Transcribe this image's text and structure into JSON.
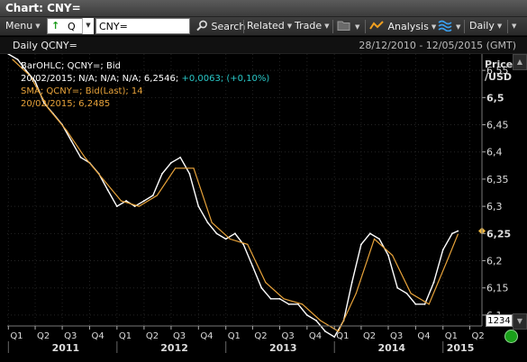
{
  "window": {
    "title": "Chart: CNY="
  },
  "toolbar": {
    "menu_label": "Menu",
    "ric_prefix": "Q",
    "ric_value": "CNY=",
    "search_label": "Search",
    "related_label": "Related",
    "trade_label": "Trade",
    "analysis_label": "Analysis",
    "interval_label": "Daily"
  },
  "header": {
    "chart_name": "Daily QCNY=",
    "date_range": "28/12/2010 - 12/05/2015 (GMT)"
  },
  "legend": {
    "bar_line": "BarOHLC; QCNY=; Bid",
    "bar_values": "20/02/2015; N/A; N/A; N/A; 6,2546;",
    "bar_change": "+0,0063; (+0,10%)",
    "sma_line": "SMA; QCNY=; Bid(Last); 14",
    "sma_values": "20/02/2015; 6,2485"
  },
  "y_axis": {
    "title_1": "Price",
    "title_2": "/USD",
    "ticks": [
      "6,55",
      "6,5",
      "6,45",
      "6,4",
      "6,35",
      "6,3",
      "6,25",
      "6,2",
      "6,15",
      "6,1"
    ],
    "current_price_label": "6,25",
    "bottom_box": "1234"
  },
  "x_axis": {
    "quarters": [
      "Q1",
      "Q2",
      "Q3",
      "Q4",
      "Q1",
      "Q2",
      "Q3",
      "Q4",
      "Q1",
      "Q2",
      "Q3",
      "Q4",
      "Q1",
      "Q2",
      "Q3",
      "Q4",
      "Q1",
      "Q2"
    ],
    "years": [
      "2011",
      "2012",
      "2013",
      "2014",
      "2015"
    ]
  },
  "colors": {
    "price_series": "#ffffff",
    "sma_series": "#e8a33a",
    "change_text": "#29c8c8",
    "current_marker": "#f0b840",
    "status_dot": "#1aa01a"
  },
  "chart_data": {
    "type": "line",
    "title": "Daily QCNY=",
    "ylabel": "Price /USD",
    "ylim": [
      6.08,
      6.58
    ],
    "x_range": [
      "2010-12-28",
      "2015-05-12"
    ],
    "grid": true,
    "legend_placement": "top-left",
    "series": [
      {
        "name": "BarOHLC; QCNY=; Bid",
        "color": "#ffffff",
        "points": [
          [
            "2011-01-01",
            6.58
          ],
          [
            "2011-02-01",
            6.57
          ],
          [
            "2011-03-01",
            6.55
          ],
          [
            "2011-04-01",
            6.53
          ],
          [
            "2011-05-01",
            6.49
          ],
          [
            "2011-06-01",
            6.47
          ],
          [
            "2011-07-01",
            6.45
          ],
          [
            "2011-08-01",
            6.42
          ],
          [
            "2011-09-01",
            6.39
          ],
          [
            "2011-10-01",
            6.38
          ],
          [
            "2011-11-01",
            6.36
          ],
          [
            "2011-12-01",
            6.33
          ],
          [
            "2012-01-01",
            6.3
          ],
          [
            "2012-02-01",
            6.31
          ],
          [
            "2012-03-01",
            6.3
          ],
          [
            "2012-04-01",
            6.31
          ],
          [
            "2012-05-01",
            6.32
          ],
          [
            "2012-06-01",
            6.36
          ],
          [
            "2012-07-01",
            6.38
          ],
          [
            "2012-08-01",
            6.39
          ],
          [
            "2012-09-01",
            6.36
          ],
          [
            "2012-10-01",
            6.3
          ],
          [
            "2012-11-01",
            6.27
          ],
          [
            "2012-12-01",
            6.25
          ],
          [
            "2013-01-01",
            6.24
          ],
          [
            "2013-02-01",
            6.25
          ],
          [
            "2013-03-01",
            6.23
          ],
          [
            "2013-04-01",
            6.19
          ],
          [
            "2013-05-01",
            6.15
          ],
          [
            "2013-06-01",
            6.13
          ],
          [
            "2013-07-01",
            6.13
          ],
          [
            "2013-08-01",
            6.12
          ],
          [
            "2013-09-01",
            6.12
          ],
          [
            "2013-10-01",
            6.1
          ],
          [
            "2013-11-01",
            6.09
          ],
          [
            "2013-12-01",
            6.07
          ],
          [
            "2014-01-01",
            6.06
          ],
          [
            "2014-02-01",
            6.09
          ],
          [
            "2014-03-01",
            6.16
          ],
          [
            "2014-04-01",
            6.23
          ],
          [
            "2014-05-01",
            6.25
          ],
          [
            "2014-06-01",
            6.24
          ],
          [
            "2014-07-01",
            6.21
          ],
          [
            "2014-08-01",
            6.15
          ],
          [
            "2014-09-01",
            6.14
          ],
          [
            "2014-10-01",
            6.12
          ],
          [
            "2014-11-01",
            6.12
          ],
          [
            "2014-12-01",
            6.16
          ],
          [
            "2015-01-01",
            6.22
          ],
          [
            "2015-02-01",
            6.25
          ],
          [
            "2015-02-20",
            6.2546
          ]
        ]
      },
      {
        "name": "SMA; QCNY=; Bid(Last); 14",
        "color": "#e8a33a",
        "points": [
          [
            "2011-01-15",
            6.57
          ],
          [
            "2011-03-15",
            6.54
          ],
          [
            "2011-05-15",
            6.48
          ],
          [
            "2011-07-15",
            6.44
          ],
          [
            "2011-09-15",
            6.39
          ],
          [
            "2011-11-15",
            6.35
          ],
          [
            "2012-01-15",
            6.31
          ],
          [
            "2012-03-15",
            6.3
          ],
          [
            "2012-05-15",
            6.32
          ],
          [
            "2012-07-15",
            6.37
          ],
          [
            "2012-09-15",
            6.37
          ],
          [
            "2012-11-15",
            6.27
          ],
          [
            "2013-01-15",
            6.24
          ],
          [
            "2013-03-15",
            6.23
          ],
          [
            "2013-05-15",
            6.16
          ],
          [
            "2013-07-15",
            6.13
          ],
          [
            "2013-09-15",
            6.12
          ],
          [
            "2013-11-15",
            6.09
          ],
          [
            "2014-01-15",
            6.07
          ],
          [
            "2014-03-15",
            6.14
          ],
          [
            "2014-05-15",
            6.24
          ],
          [
            "2014-07-15",
            6.21
          ],
          [
            "2014-09-15",
            6.14
          ],
          [
            "2014-11-15",
            6.12
          ],
          [
            "2015-01-15",
            6.2
          ],
          [
            "2015-02-20",
            6.2485
          ]
        ]
      }
    ]
  }
}
